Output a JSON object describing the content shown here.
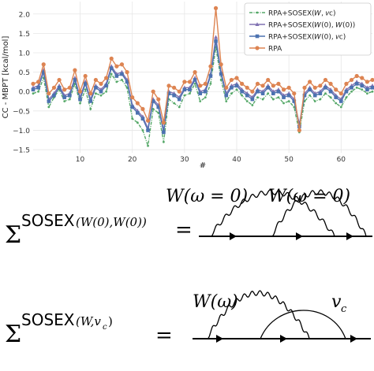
{
  "chart_data": {
    "type": "line",
    "xlabel": "#",
    "ylabel": "CC - MBPT [kcal/mol]",
    "xlim": [
      1,
      66
    ],
    "ylim": [
      -1.58,
      2.32
    ],
    "xticks": [
      10,
      20,
      30,
      40,
      50,
      60
    ],
    "yticks": [
      -1.5,
      -1.0,
      -0.5,
      0.0,
      0.5,
      1.0,
      1.5,
      2.0
    ],
    "ytick_labels": [
      "−1.5",
      "−1.0",
      "−0.5",
      "0.0",
      "0.5",
      "1.0",
      "1.5",
      "2.0"
    ],
    "grid": true,
    "legend_position": "top-right",
    "x": [
      1,
      2,
      3,
      4,
      5,
      6,
      7,
      8,
      9,
      10,
      11,
      12,
      13,
      14,
      15,
      16,
      17,
      18,
      19,
      20,
      21,
      22,
      23,
      24,
      25,
      26,
      27,
      28,
      29,
      30,
      31,
      32,
      33,
      34,
      35,
      36,
      37,
      38,
      39,
      40,
      41,
      42,
      43,
      44,
      45,
      46,
      47,
      48,
      49,
      50,
      51,
      52,
      53,
      54,
      55,
      56,
      57,
      58,
      59,
      60,
      61,
      62,
      63,
      64,
      65,
      66
    ],
    "series": [
      {
        "name": "RPA+SOSEX(W, v_c)",
        "legend_label": "RPA+SOSEX(𝑊, 𝑣c)",
        "color": "#55a868",
        "marker": "dot",
        "values": [
          -0.05,
          0.0,
          0.35,
          -0.4,
          -0.15,
          0.05,
          -0.25,
          -0.2,
          0.2,
          -0.3,
          0.05,
          -0.45,
          -0.05,
          -0.1,
          0.0,
          0.45,
          0.25,
          0.3,
          0.1,
          -0.7,
          -0.8,
          -1.0,
          -1.4,
          -0.45,
          -0.55,
          -1.3,
          -0.2,
          -0.3,
          -0.4,
          -0.1,
          -0.05,
          0.2,
          -0.25,
          -0.15,
          0.2,
          1.15,
          0.3,
          -0.25,
          -0.05,
          0.05,
          -0.1,
          -0.25,
          -0.35,
          -0.15,
          -0.2,
          -0.05,
          -0.2,
          -0.15,
          -0.3,
          -0.25,
          -0.4,
          -1.05,
          -0.25,
          -0.1,
          -0.25,
          -0.2,
          -0.05,
          -0.15,
          -0.3,
          -0.4,
          -0.15,
          0.0,
          0.1,
          0.05,
          -0.05,
          0.0
        ]
      },
      {
        "name": "RPA+SOSEX(W(0), W(0))",
        "legend_label": "RPA+SOSEX(𝑊(0), 𝑊(0))",
        "color": "#8172b2",
        "marker": "triangle",
        "values": [
          0.1,
          0.15,
          0.55,
          -0.2,
          -0.05,
          0.15,
          -0.1,
          -0.05,
          0.35,
          -0.15,
          0.25,
          -0.2,
          0.15,
          0.05,
          0.2,
          0.65,
          0.45,
          0.5,
          0.3,
          -0.35,
          -0.5,
          -0.65,
          -0.95,
          -0.2,
          -0.35,
          -1.0,
          0.0,
          -0.05,
          -0.15,
          0.1,
          0.1,
          0.35,
          0.0,
          0.05,
          0.45,
          1.4,
          0.5,
          -0.05,
          0.15,
          0.2,
          0.05,
          -0.05,
          -0.15,
          0.05,
          0.0,
          0.15,
          0.0,
          0.05,
          -0.1,
          -0.05,
          -0.2,
          -0.85,
          -0.05,
          0.1,
          -0.05,
          0.0,
          0.15,
          0.05,
          -0.1,
          -0.2,
          0.05,
          0.15,
          0.25,
          0.2,
          0.1,
          0.15
        ]
      },
      {
        "name": "RPA+SOSEX(W(0), v_c)",
        "legend_label": "RPA+SOSEX(𝑊(0), 𝑣c)",
        "color": "#4c72b0",
        "marker": "square",
        "values": [
          0.05,
          0.1,
          0.5,
          -0.25,
          -0.1,
          0.1,
          -0.15,
          -0.1,
          0.3,
          -0.2,
          0.2,
          -0.25,
          0.1,
          0.0,
          0.15,
          0.6,
          0.4,
          0.45,
          0.25,
          -0.4,
          -0.55,
          -0.7,
          -1.0,
          -0.25,
          -0.4,
          -1.05,
          -0.05,
          -0.1,
          -0.2,
          0.05,
          0.05,
          0.3,
          -0.05,
          0.0,
          0.4,
          1.3,
          0.45,
          -0.1,
          0.1,
          0.15,
          0.0,
          -0.1,
          -0.2,
          0.0,
          -0.05,
          0.1,
          -0.05,
          0.0,
          -0.15,
          -0.1,
          -0.25,
          -0.9,
          -0.1,
          0.05,
          -0.1,
          -0.05,
          0.1,
          0.0,
          -0.15,
          -0.25,
          0.0,
          0.1,
          0.2,
          0.15,
          0.05,
          0.1
        ]
      },
      {
        "name": "RPA",
        "legend_label": "RPA",
        "color": "#dd8452",
        "marker": "circle",
        "values": [
          0.2,
          0.25,
          0.7,
          -0.05,
          0.1,
          0.3,
          0.05,
          0.1,
          0.55,
          0.0,
          0.4,
          -0.05,
          0.3,
          0.2,
          0.35,
          0.85,
          0.65,
          0.7,
          0.5,
          -0.15,
          -0.3,
          -0.45,
          -0.75,
          0.0,
          -0.2,
          -0.8,
          0.15,
          0.1,
          0.0,
          0.25,
          0.25,
          0.5,
          0.15,
          0.2,
          0.65,
          2.15,
          0.7,
          0.1,
          0.3,
          0.35,
          0.2,
          0.1,
          0.0,
          0.2,
          0.15,
          0.3,
          0.15,
          0.2,
          0.05,
          0.1,
          -0.05,
          -1.0,
          0.1,
          0.25,
          0.1,
          0.15,
          0.3,
          0.2,
          0.05,
          -0.05,
          0.2,
          0.3,
          0.4,
          0.35,
          0.25,
          0.3
        ]
      }
    ]
  },
  "equations": {
    "eq1": {
      "symbol": "Σ",
      "superscript_main": "SOSEX",
      "superscript_args": "(W(0),W(0))",
      "equals": "=",
      "label_left": "W(ω = 0)",
      "label_right": "W(ω = 0)"
    },
    "eq2": {
      "symbol": "Σ",
      "superscript_main": "SOSEX",
      "superscript_args": "(W,v",
      "superscript_sub": "c",
      "superscript_close": ")",
      "equals": "=",
      "label_left": "W(ω)",
      "label_right_main": "v",
      "label_right_sub": "c"
    }
  }
}
